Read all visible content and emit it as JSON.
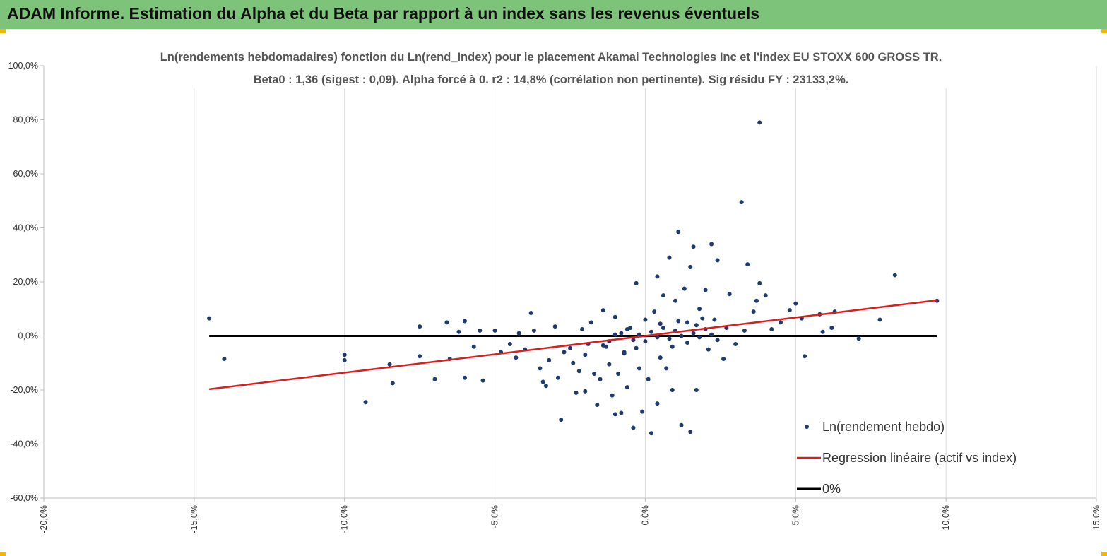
{
  "header": {
    "title": "ADAM Informe. Estimation du Alpha et du Beta par rapport à un index sans les revenus éventuels",
    "color": "#7dc47a"
  },
  "chart_data": {
    "type": "scatter",
    "title": "Ln(rendements hebdomadaires) fonction du Ln(rend_Index) pour le placement Akamai Technologies Inc et l'index EU STOXX 600 GROSS TR.",
    "subtitle": "Beta0 : 1,36 (sigest : 0,09). Alpha forcé à 0. r2 : 14,8% (corrélation non pertinente). Sig résidu FY : 23133,2%.",
    "xlabel": "",
    "ylabel": "",
    "xlim": [
      -20,
      15
    ],
    "ylim": [
      -60,
      100
    ],
    "x_ticks": [
      -20,
      -15,
      -10,
      -5,
      0,
      5,
      10,
      15
    ],
    "y_ticks": [
      -60,
      -40,
      -20,
      0,
      20,
      40,
      60,
      80,
      100
    ],
    "x_tick_labels": [
      "-20,0%",
      "-15,0%",
      "-10,0%",
      "-5,0%",
      "0,0%",
      "5,0%",
      "10,0%",
      "15,0%"
    ],
    "y_tick_labels": [
      "-60,0%",
      "-40,0%",
      "-20,0%",
      "0,0%",
      "20,0%",
      "40,0%",
      "60,0%",
      "80,0%",
      "100,0%"
    ],
    "grid": "vertical",
    "legend_position": "bottom-right",
    "series": [
      {
        "name": "Ln(rendement hebdo)",
        "kind": "scatter",
        "color": "#1f3a6e",
        "points": [
          [
            -14.5,
            6.5
          ],
          [
            -14.0,
            -8.5
          ],
          [
            -10.0,
            -7.0
          ],
          [
            -10.0,
            -9.0
          ],
          [
            -9.3,
            -24.5
          ],
          [
            -8.5,
            -10.5
          ],
          [
            -8.4,
            -17.5
          ],
          [
            -7.5,
            3.5
          ],
          [
            -7.5,
            -7.5
          ],
          [
            -7.0,
            -16.0
          ],
          [
            -6.6,
            5.0
          ],
          [
            -6.5,
            -8.5
          ],
          [
            -6.2,
            1.5
          ],
          [
            -6.0,
            5.5
          ],
          [
            -6.0,
            -15.5
          ],
          [
            -5.7,
            -4.0
          ],
          [
            -5.5,
            2.0
          ],
          [
            -5.4,
            -16.5
          ],
          [
            -5.0,
            2.0
          ],
          [
            -4.8,
            -6.0
          ],
          [
            -4.5,
            -3.0
          ],
          [
            -4.3,
            -8.0
          ],
          [
            -4.2,
            1.0
          ],
          [
            -4.0,
            -5.0
          ],
          [
            -3.8,
            8.5
          ],
          [
            -3.7,
            2.0
          ],
          [
            -3.5,
            -12.0
          ],
          [
            -3.4,
            -17.0
          ],
          [
            -3.3,
            -18.5
          ],
          [
            -3.2,
            -9.0
          ],
          [
            -3.0,
            3.5
          ],
          [
            -2.9,
            -15.5
          ],
          [
            -2.8,
            -31.0
          ],
          [
            -2.7,
            -6.0
          ],
          [
            -2.5,
            -4.5
          ],
          [
            -2.4,
            -10.0
          ],
          [
            -2.3,
            -21.0
          ],
          [
            -2.2,
            -13.0
          ],
          [
            -2.1,
            2.5
          ],
          [
            -2.0,
            -20.5
          ],
          [
            -2.0,
            -7.0
          ],
          [
            -1.9,
            -3.0
          ],
          [
            -1.8,
            5.0
          ],
          [
            -1.7,
            -14.0
          ],
          [
            -1.6,
            -25.5
          ],
          [
            -1.5,
            -16.0
          ],
          [
            -1.4,
            9.5
          ],
          [
            -1.3,
            -4.0
          ],
          [
            -1.2,
            -10.5
          ],
          [
            -1.1,
            -22.0
          ],
          [
            -1.0,
            -29.0
          ],
          [
            -1.0,
            7.0
          ],
          [
            -0.9,
            -14.0
          ],
          [
            -0.8,
            -28.5
          ],
          [
            -0.7,
            -6.0
          ],
          [
            -0.6,
            -19.0
          ],
          [
            -0.5,
            3.0
          ],
          [
            -0.4,
            -34.0
          ],
          [
            -0.3,
            19.5
          ],
          [
            -0.2,
            -12.0
          ],
          [
            -0.1,
            -28.0
          ],
          [
            0.0,
            6.0
          ],
          [
            0.1,
            -16.0
          ],
          [
            0.2,
            -36.0
          ],
          [
            0.3,
            9.0
          ],
          [
            0.4,
            22.0
          ],
          [
            0.4,
            -25.0
          ],
          [
            0.5,
            -8.0
          ],
          [
            0.6,
            15.0
          ],
          [
            0.7,
            -12.0
          ],
          [
            0.8,
            29.0
          ],
          [
            0.9,
            -20.0
          ],
          [
            1.0,
            13.0
          ],
          [
            1.1,
            38.5
          ],
          [
            1.2,
            -33.0
          ],
          [
            1.3,
            17.5
          ],
          [
            1.4,
            5.0
          ],
          [
            1.5,
            -35.5
          ],
          [
            1.5,
            25.5
          ],
          [
            1.6,
            33.0
          ],
          [
            1.7,
            -20.0
          ],
          [
            1.8,
            10.0
          ],
          [
            2.0,
            17.0
          ],
          [
            2.1,
            -5.0
          ],
          [
            2.2,
            34.0
          ],
          [
            2.3,
            6.0
          ],
          [
            2.4,
            28.0
          ],
          [
            2.6,
            -8.5
          ],
          [
            2.8,
            15.5
          ],
          [
            3.0,
            -3.0
          ],
          [
            3.2,
            49.5
          ],
          [
            3.3,
            2.0
          ],
          [
            3.4,
            26.5
          ],
          [
            3.6,
            9.0
          ],
          [
            3.7,
            13.0
          ],
          [
            3.8,
            19.5
          ],
          [
            3.8,
            79.0
          ],
          [
            4.0,
            15.0
          ],
          [
            4.2,
            2.5
          ],
          [
            4.5,
            5.0
          ],
          [
            4.8,
            9.5
          ],
          [
            5.0,
            12.0
          ],
          [
            5.2,
            6.5
          ],
          [
            5.3,
            -7.5
          ],
          [
            5.8,
            8.0
          ],
          [
            5.9,
            1.5
          ],
          [
            6.2,
            3.0
          ],
          [
            6.3,
            9.0
          ],
          [
            7.1,
            -1.0
          ],
          [
            7.8,
            6.0
          ],
          [
            8.3,
            22.5
          ],
          [
            9.7,
            13.0
          ],
          [
            -0.8,
            1.0
          ],
          [
            -0.6,
            2.5
          ],
          [
            -0.4,
            -1.5
          ],
          [
            -0.2,
            0.5
          ],
          [
            0.0,
            -2.0
          ],
          [
            0.2,
            1.5
          ],
          [
            0.4,
            -0.5
          ],
          [
            0.6,
            3.0
          ],
          [
            0.8,
            -1.0
          ],
          [
            1.0,
            2.0
          ],
          [
            1.2,
            0.0
          ],
          [
            1.4,
            -2.5
          ],
          [
            1.6,
            1.0
          ],
          [
            1.8,
            -0.5
          ],
          [
            2.0,
            2.5
          ],
          [
            2.2,
            0.5
          ],
          [
            2.4,
            -1.5
          ],
          [
            -1.2,
            -2.0
          ],
          [
            -1.0,
            0.5
          ],
          [
            -1.4,
            -3.5
          ],
          [
            0.5,
            4.5
          ],
          [
            1.1,
            5.5
          ],
          [
            1.7,
            4.0
          ],
          [
            -0.3,
            -4.5
          ],
          [
            0.9,
            -4.0
          ],
          [
            1.9,
            6.5
          ],
          [
            2.7,
            3.0
          ],
          [
            -0.7,
            -6.5
          ]
        ]
      },
      {
        "name": "Regression linéaire (actif vs index)",
        "kind": "line",
        "color": "#e01b1b",
        "points": [
          [
            -14.5,
            -19.7
          ],
          [
            9.7,
            13.2
          ]
        ]
      },
      {
        "name": "0%",
        "kind": "line",
        "color": "#000000",
        "points": [
          [
            -14.5,
            0
          ],
          [
            9.7,
            0
          ]
        ]
      }
    ]
  }
}
